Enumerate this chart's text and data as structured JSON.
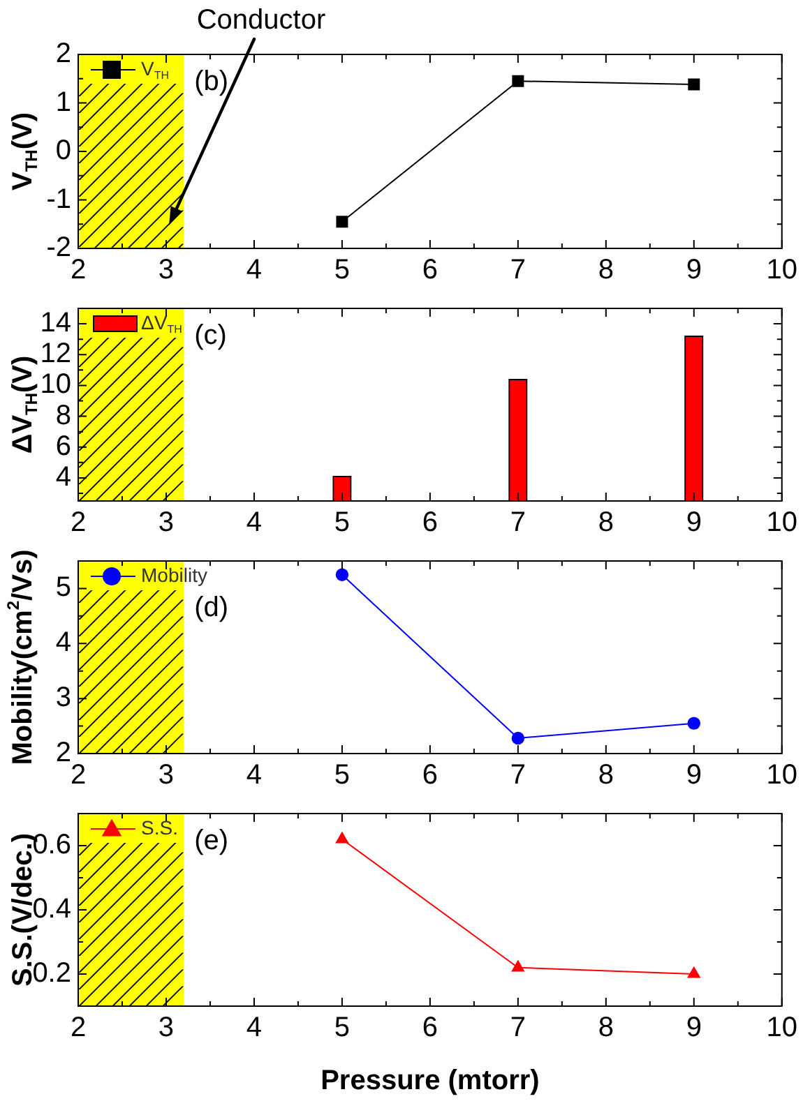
{
  "chart_data": [
    {
      "type": "line",
      "x": [
        5,
        7,
        9
      ],
      "series": [
        {
          "name": "V$_{TH}$",
          "color": "#000000",
          "values": [
            -1.45,
            1.45,
            1.38
          ]
        }
      ],
      "ylabel": "V$_{TH}$(V)",
      "xlim": [
        2,
        10
      ],
      "xticks": [
        2,
        {
          "value": 2.5,
          "label": null
        },
        3,
        {
          "value": 3.5,
          "label": null
        },
        4,
        {
          "value": 4.5,
          "label": null
        },
        5,
        {
          "value": 5.5,
          "label": null
        },
        6,
        {
          "value": 6.5,
          "label": null
        },
        7,
        {
          "value": 7.5,
          "label": null
        },
        8,
        {
          "value": 8.5,
          "label": null
        },
        9,
        {
          "value": 9.5,
          "label": null
        },
        10
      ],
      "ylim": [
        -2,
        2
      ],
      "yticks": [
        -2,
        {
          "value": -1.5,
          "label": null
        },
        -1,
        {
          "value": -0.5,
          "label": null
        },
        0,
        {
          "value": 0.5,
          "label": null
        },
        1,
        {
          "value": 1.5,
          "label": null
        },
        2
      ],
      "marker": "square",
      "legend": "top left",
      "bands": [
        {
          "axis": "x",
          "from": 2,
          "to": 3.2,
          "label": "Conductor",
          "color": "#ffff00"
        }
      ],
      "annotations": [
        "(b)"
      ]
    },
    {
      "type": "bar",
      "x": [
        5,
        7,
        9
      ],
      "series": [
        {
          "name": "ΔV$_{TH}$",
          "color": "#ff0000",
          "values": [
            4.1,
            10.4,
            13.2
          ]
        }
      ],
      "ylabel": "ΔV$_{TH}$(V)",
      "xlim": [
        2,
        10
      ],
      "xticks": [
        2,
        {
          "value": 2.5,
          "label": null
        },
        3,
        {
          "value": 3.5,
          "label": null
        },
        4,
        {
          "value": 4.5,
          "label": null
        },
        5,
        {
          "value": 5.5,
          "label": null
        },
        6,
        {
          "value": 6.5,
          "label": null
        },
        7,
        {
          "value": 7.5,
          "label": null
        },
        8,
        {
          "value": 8.5,
          "label": null
        },
        9,
        {
          "value": 9.5,
          "label": null
        },
        10
      ],
      "ylim": [
        2.5,
        15
      ],
      "yticks": [
        {
          "value": 3,
          "label": null
        },
        4,
        {
          "value": 5,
          "label": null
        },
        6,
        {
          "value": 7,
          "label": null
        },
        8,
        {
          "value": 9,
          "label": null
        },
        10,
        {
          "value": 11,
          "label": null
        },
        12,
        {
          "value": 13,
          "label": null
        },
        14
      ],
      "legend": "top left",
      "bands": [
        {
          "axis": "x",
          "from": 2,
          "to": 3.2,
          "color": "#ffff00"
        }
      ],
      "annotations": [
        "(c)"
      ]
    },
    {
      "type": "line",
      "x": [
        5,
        7,
        9
      ],
      "series": [
        {
          "name": "Mobility",
          "color": "#0000ff",
          "values": [
            5.25,
            2.28,
            2.55
          ]
        }
      ],
      "ylabel": "Mobility(cm$^{2}$/Vs)",
      "xlim": [
        2,
        10
      ],
      "xticks": [
        2,
        {
          "value": 2.5,
          "label": null
        },
        3,
        {
          "value": 3.5,
          "label": null
        },
        4,
        {
          "value": 4.5,
          "label": null
        },
        5,
        {
          "value": 5.5,
          "label": null
        },
        6,
        {
          "value": 6.5,
          "label": null
        },
        7,
        {
          "value": 7.5,
          "label": null
        },
        8,
        {
          "value": 8.5,
          "label": null
        },
        9,
        {
          "value": 9.5,
          "label": null
        },
        10
      ],
      "ylim": [
        2,
        5.5
      ],
      "yticks": [
        2,
        {
          "value": 2.5,
          "label": null
        },
        3,
        {
          "value": 3.5,
          "label": null
        },
        4,
        {
          "value": 4.5,
          "label": null
        },
        5
      ],
      "marker": "circle",
      "legend": "top left",
      "bands": [
        {
          "axis": "x",
          "from": 2,
          "to": 3.2,
          "color": "#ffff00"
        }
      ],
      "annotations": [
        "(d)"
      ]
    },
    {
      "type": "line",
      "x": [
        5,
        7,
        9
      ],
      "series": [
        {
          "name": "S.S.",
          "color": "#ff0000",
          "values": [
            0.62,
            0.22,
            0.2
          ]
        }
      ],
      "xlabel": "Pressure (mtorr)",
      "ylabel": "S.S.(V/dec.)",
      "xlim": [
        2,
        10
      ],
      "xticks": [
        2,
        {
          "value": 2.5,
          "label": null
        },
        3,
        {
          "value": 3.5,
          "label": null
        },
        4,
        {
          "value": 4.5,
          "label": null
        },
        5,
        {
          "value": 5.5,
          "label": null
        },
        6,
        {
          "value": 6.5,
          "label": null
        },
        7,
        {
          "value": 7.5,
          "label": null
        },
        8,
        {
          "value": 8.5,
          "label": null
        },
        9,
        {
          "value": 9.5,
          "label": null
        },
        10
      ],
      "ylim": [
        0.1,
        0.7
      ],
      "yticks": [
        0.2,
        {
          "value": 0.3,
          "label": null
        },
        0.4,
        {
          "value": 0.5,
          "label": null
        },
        0.6
      ],
      "marker": "triangle",
      "legend": "top left",
      "bands": [
        {
          "axis": "x",
          "from": 2,
          "to": 3.2,
          "color": "#ffff00"
        }
      ],
      "annotations": [
        "(e)"
      ]
    }
  ]
}
